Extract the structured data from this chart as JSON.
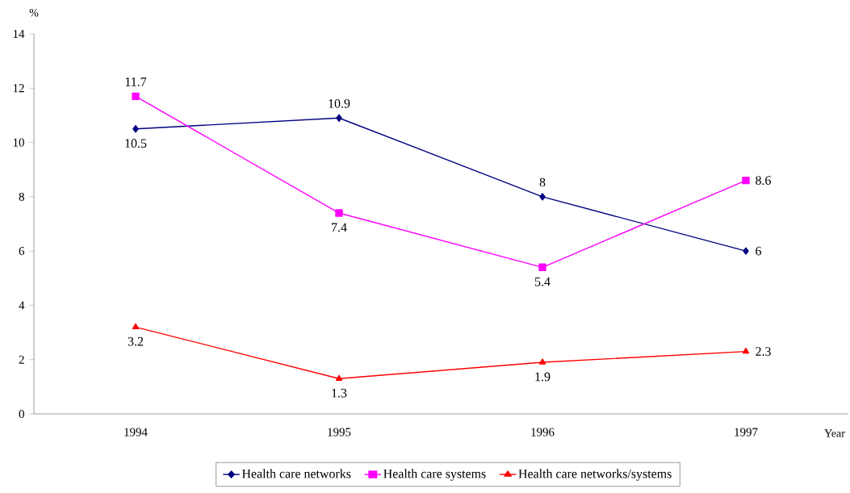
{
  "chart_data": {
    "type": "line",
    "xlabel": "Year",
    "ylabel": "%",
    "categories": [
      "1994",
      "1995",
      "1996",
      "1997"
    ],
    "series": [
      {
        "name": "Health care networks",
        "color": "#000080",
        "marker": "diamond",
        "values": [
          10.5,
          10.9,
          8,
          6
        ]
      },
      {
        "name": "Health care systems",
        "color": "#ff00ff",
        "marker": "square",
        "values": [
          11.7,
          7.4,
          5.4,
          8.6
        ]
      },
      {
        "name": "Health care networks/systems",
        "color": "#ff0000",
        "marker": "triangle",
        "values": [
          3.2,
          1.3,
          1.9,
          2.3
        ]
      }
    ],
    "ylim": [
      0,
      14
    ],
    "yticks": [
      0,
      2,
      4,
      6,
      8,
      10,
      12,
      14
    ],
    "data_labels": true,
    "legend": "bottom",
    "grid": false,
    "line_style": "solid"
  }
}
